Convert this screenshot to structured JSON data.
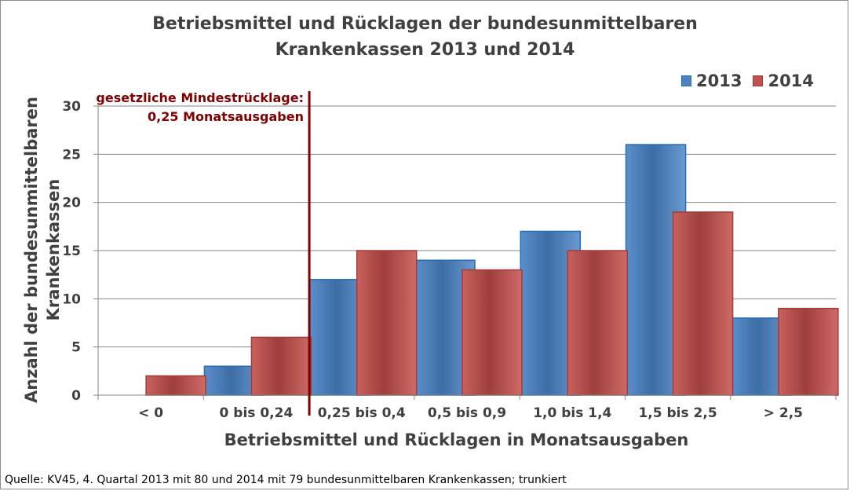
{
  "chart_data": {
    "type": "bar",
    "title": [
      "Betriebsmittel und Rücklagen der bundesunmittelbaren",
      "Krankenkassen 2013 und 2014"
    ],
    "ylabel": [
      "Anzahl der bundesunmittelbaren",
      "Krankenkassen"
    ],
    "xlabel": "Betriebsmittel und Rücklagen in Monatsausgaben",
    "categories": [
      "< 0",
      "0 bis 0,24",
      "0,25 bis 0,4",
      "0,5 bis 0,9",
      "1,0 bis 1,4",
      "1,5 bis 2,5",
      "> 2,5"
    ],
    "series": [
      {
        "name": "2013",
        "values": [
          0,
          3,
          12,
          14,
          17,
          26,
          8
        ],
        "color": "#4f81bd",
        "edge": "#1f6fb8"
      },
      {
        "name": "2014",
        "values": [
          2,
          6,
          15,
          13,
          15,
          19,
          9
        ],
        "color": "#c0504d",
        "edge": "#a03c3a"
      }
    ],
    "ylim": [
      0,
      30
    ],
    "yticks": [
      0,
      5,
      10,
      15,
      20,
      25,
      30
    ],
    "grid": true,
    "legend": "top-right",
    "annotation": {
      "lines": [
        "gesetzliche Mindestrücklage:",
        "0,25 Monatsausgaben"
      ],
      "color": "#800000",
      "x_boundary": "between 0 bis 0,24 and 0,25 bis 0,4"
    },
    "source": "Quelle: KV45, 4. Quartal 2013 mit 80 und 2014 mit 79 bundesunmittelbaren Krankenkassen; trunkiert"
  }
}
